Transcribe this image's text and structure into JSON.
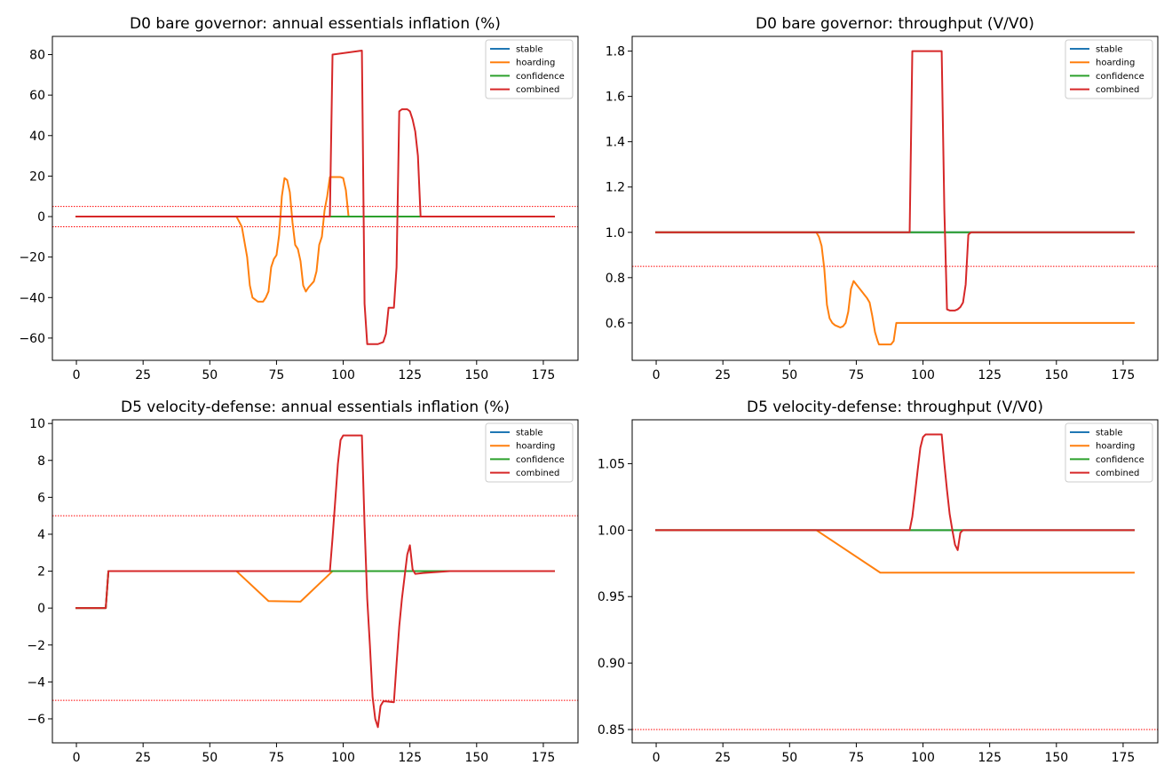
{
  "chart_data": [
    {
      "type": "line",
      "title": "D0 bare governor: annual essentials inflation (%)",
      "xlabel": "",
      "ylabel": "",
      "xlim": [
        -9,
        188
      ],
      "ylim": [
        -71,
        89
      ],
      "xticks": [
        0,
        25,
        50,
        75,
        100,
        125,
        150,
        175
      ],
      "yticks": [
        -60,
        -40,
        -20,
        0,
        20,
        40,
        60,
        80
      ],
      "ytick_labels": [
        "−60",
        "−40",
        "−20",
        "0",
        "20",
        "40",
        "60",
        "80"
      ],
      "hlines": [
        5,
        -5
      ],
      "legend_position": "upper right",
      "series": [
        {
          "name": "stable",
          "color": "#1f77b4",
          "points": [
            [
              0,
              0
            ],
            [
              179,
              0
            ]
          ]
        },
        {
          "name": "hoarding",
          "color": "#ff7f0e",
          "points": [
            [
              0,
              0
            ],
            [
              60,
              0
            ],
            [
              62,
              -5
            ],
            [
              64,
              -20
            ],
            [
              65,
              -34
            ],
            [
              66,
              -40
            ],
            [
              68,
              -42
            ],
            [
              70,
              -42
            ],
            [
              71,
              -40
            ],
            [
              72,
              -37
            ],
            [
              73,
              -25
            ],
            [
              74,
              -21
            ],
            [
              75,
              -19
            ],
            [
              76,
              -9
            ],
            [
              77,
              10
            ],
            [
              78,
              19
            ],
            [
              79,
              18
            ],
            [
              80,
              12
            ],
            [
              81,
              -3
            ],
            [
              82,
              -14
            ],
            [
              83,
              -16
            ],
            [
              84,
              -22
            ],
            [
              85,
              -34
            ],
            [
              86,
              -37
            ],
            [
              87,
              -35
            ],
            [
              89,
              -32
            ],
            [
              90,
              -27
            ],
            [
              91,
              -14
            ],
            [
              92,
              -10
            ],
            [
              93,
              3
            ],
            [
              94,
              10
            ],
            [
              95,
              19.5
            ],
            [
              99,
              19.5
            ],
            [
              100,
              19
            ],
            [
              101,
              13
            ],
            [
              102,
              0
            ],
            [
              179,
              0
            ]
          ]
        },
        {
          "name": "confidence",
          "color": "#2ca02c",
          "points": [
            [
              0,
              0
            ],
            [
              179,
              0
            ]
          ]
        },
        {
          "name": "combined",
          "color": "#d62728",
          "points": [
            [
              0,
              0
            ],
            [
              95,
              0
            ],
            [
              96,
              80
            ],
            [
              107,
              82
            ],
            [
              108,
              -43
            ],
            [
              109,
              -63
            ],
            [
              113,
              -63
            ],
            [
              115,
              -62
            ],
            [
              116,
              -58
            ],
            [
              117,
              -45
            ],
            [
              119,
              -45
            ],
            [
              120,
              -25
            ],
            [
              121,
              52
            ],
            [
              122,
              53
            ],
            [
              124,
              53
            ],
            [
              125,
              52
            ],
            [
              126,
              48
            ],
            [
              127,
              42
            ],
            [
              128,
              30
            ],
            [
              129,
              0
            ],
            [
              179,
              0
            ]
          ]
        }
      ]
    },
    {
      "type": "line",
      "title": "D0 bare governor: throughput (V/V0)",
      "xlabel": "",
      "ylabel": "",
      "xlim": [
        -9,
        188
      ],
      "ylim": [
        0.435,
        1.865
      ],
      "xticks": [
        0,
        25,
        50,
        75,
        100,
        125,
        150,
        175
      ],
      "yticks": [
        0.6,
        0.8,
        1.0,
        1.2,
        1.4,
        1.6,
        1.8
      ],
      "ytick_labels": [
        "0.6",
        "0.8",
        "1.0",
        "1.2",
        "1.4",
        "1.6",
        "1.8"
      ],
      "hlines": [
        0.85
      ],
      "legend_position": "upper right",
      "series": [
        {
          "name": "stable",
          "color": "#1f77b4",
          "points": [
            [
              0,
              1.0
            ],
            [
              179,
              1.0
            ]
          ]
        },
        {
          "name": "hoarding",
          "color": "#ff7f0e",
          "points": [
            [
              0,
              1.0
            ],
            [
              60,
              1.0
            ],
            [
              61,
              0.98
            ],
            [
              62,
              0.94
            ],
            [
              63,
              0.84
            ],
            [
              64,
              0.68
            ],
            [
              65,
              0.62
            ],
            [
              66,
              0.6
            ],
            [
              67,
              0.59
            ],
            [
              68,
              0.585
            ],
            [
              69,
              0.58
            ],
            [
              70,
              0.585
            ],
            [
              71,
              0.6
            ],
            [
              72,
              0.65
            ],
            [
              73,
              0.75
            ],
            [
              74,
              0.785
            ],
            [
              75,
              0.77
            ],
            [
              76,
              0.755
            ],
            [
              77,
              0.74
            ],
            [
              78,
              0.725
            ],
            [
              79,
              0.71
            ],
            [
              80,
              0.69
            ],
            [
              81,
              0.63
            ],
            [
              82,
              0.56
            ],
            [
              83,
              0.52
            ],
            [
              83.5,
              0.505
            ],
            [
              88,
              0.505
            ],
            [
              89,
              0.52
            ],
            [
              90,
              0.6
            ],
            [
              179,
              0.6
            ]
          ]
        },
        {
          "name": "confidence",
          "color": "#2ca02c",
          "points": [
            [
              0,
              1.0
            ],
            [
              179,
              1.0
            ]
          ]
        },
        {
          "name": "combined",
          "color": "#d62728",
          "points": [
            [
              0,
              1.0
            ],
            [
              95,
              1.0
            ],
            [
              96,
              1.8
            ],
            [
              107,
              1.8
            ],
            [
              108,
              1.1
            ],
            [
              109,
              0.66
            ],
            [
              110,
              0.655
            ],
            [
              112,
              0.655
            ],
            [
              113,
              0.66
            ],
            [
              114,
              0.67
            ],
            [
              115,
              0.69
            ],
            [
              116,
              0.77
            ],
            [
              117,
              0.99
            ],
            [
              118,
              1.0
            ],
            [
              179,
              1.0
            ]
          ]
        }
      ]
    },
    {
      "type": "line",
      "title": "D5 velocity-defense: annual essentials inflation (%)",
      "xlabel": "",
      "ylabel": "",
      "xlim": [
        -9,
        188
      ],
      "ylim": [
        -7.3,
        10.2
      ],
      "xticks": [
        0,
        25,
        50,
        75,
        100,
        125,
        150,
        175
      ],
      "yticks": [
        -6,
        -4,
        -2,
        0,
        2,
        4,
        6,
        8,
        10
      ],
      "ytick_labels": [
        "−6",
        "−4",
        "−2",
        "0",
        "2",
        "4",
        "6",
        "8",
        "10"
      ],
      "hlines": [
        5,
        -5
      ],
      "legend_position": "upper right",
      "series": [
        {
          "name": "stable",
          "color": "#1f77b4",
          "points": [
            [
              0,
              0
            ],
            [
              11,
              0
            ],
            [
              12,
              2
            ],
            [
              179,
              2
            ]
          ]
        },
        {
          "name": "hoarding",
          "color": "#ff7f0e",
          "points": [
            [
              0,
              0
            ],
            [
              11,
              0
            ],
            [
              12,
              2
            ],
            [
              60,
              2
            ],
            [
              72,
              0.38
            ],
            [
              84,
              0.35
            ],
            [
              96,
              2
            ],
            [
              179,
              2
            ]
          ]
        },
        {
          "name": "confidence",
          "color": "#2ca02c",
          "points": [
            [
              0,
              0
            ],
            [
              11,
              0
            ],
            [
              12,
              2
            ],
            [
              179,
              2
            ]
          ]
        },
        {
          "name": "combined",
          "color": "#d62728",
          "points": [
            [
              0,
              0
            ],
            [
              11,
              0
            ],
            [
              12,
              2
            ],
            [
              95,
              2
            ],
            [
              96,
              3.8
            ],
            [
              97,
              5.8
            ],
            [
              98,
              7.8
            ],
            [
              99,
              9.1
            ],
            [
              100,
              9.35
            ],
            [
              107,
              9.35
            ],
            [
              108,
              4.5
            ],
            [
              109,
              0.5
            ],
            [
              110,
              -2
            ],
            [
              111,
              -4.8
            ],
            [
              112,
              -6
            ],
            [
              113,
              -6.45
            ],
            [
              114,
              -5.3
            ],
            [
              115,
              -5.05
            ],
            [
              116,
              -5.05
            ],
            [
              119,
              -5.1
            ],
            [
              120,
              -3
            ],
            [
              121,
              -1
            ],
            [
              122,
              0.5
            ],
            [
              123,
              1.7
            ],
            [
              124,
              2.9
            ],
            [
              125,
              3.4
            ],
            [
              126,
              2.1
            ],
            [
              127,
              1.85
            ],
            [
              130,
              1.9
            ],
            [
              140,
              2
            ],
            [
              179,
              2
            ]
          ]
        }
      ]
    },
    {
      "type": "line",
      "title": "D5 velocity-defense: throughput (V/V0)",
      "xlabel": "",
      "ylabel": "",
      "xlim": [
        -9,
        188
      ],
      "ylim": [
        0.84,
        1.083
      ],
      "xticks": [
        0,
        25,
        50,
        75,
        100,
        125,
        150,
        175
      ],
      "yticks": [
        0.85,
        0.9,
        0.95,
        1.0,
        1.05
      ],
      "ytick_labels": [
        "0.85",
        "0.90",
        "0.95",
        "1.00",
        "1.05"
      ],
      "hlines": [
        0.85
      ],
      "legend_position": "upper right",
      "series": [
        {
          "name": "stable",
          "color": "#1f77b4",
          "points": [
            [
              0,
              1.0
            ],
            [
              179,
              1.0
            ]
          ]
        },
        {
          "name": "hoarding",
          "color": "#ff7f0e",
          "points": [
            [
              0,
              1.0
            ],
            [
              60,
              1.0
            ],
            [
              84,
              0.968
            ],
            [
              179,
              0.968
            ]
          ]
        },
        {
          "name": "confidence",
          "color": "#2ca02c",
          "points": [
            [
              0,
              1.0
            ],
            [
              179,
              1.0
            ]
          ]
        },
        {
          "name": "combined",
          "color": "#d62728",
          "points": [
            [
              0,
              1.0
            ],
            [
              95,
              1.0
            ],
            [
              96,
              1.01
            ],
            [
              97,
              1.027
            ],
            [
              98,
              1.045
            ],
            [
              99,
              1.062
            ],
            [
              100,
              1.07
            ],
            [
              101,
              1.072
            ],
            [
              107,
              1.072
            ],
            [
              108,
              1.05
            ],
            [
              109,
              1.03
            ],
            [
              110,
              1.012
            ],
            [
              111,
              1.0
            ],
            [
              112,
              0.989
            ],
            [
              113,
              0.985
            ],
            [
              114,
              0.998
            ],
            [
              115,
              1.0
            ],
            [
              179,
              1.0
            ]
          ]
        }
      ]
    }
  ]
}
